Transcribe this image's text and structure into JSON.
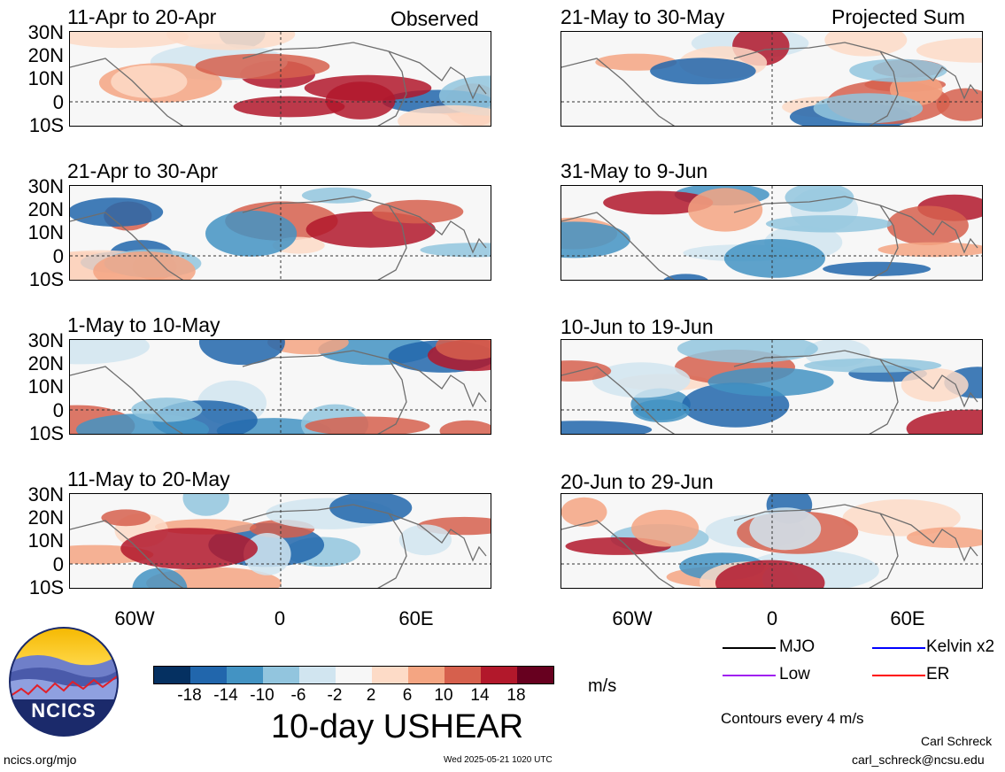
{
  "panels": {
    "left": [
      {
        "title": "11-Apr to 20-Apr",
        "tag": "Observed"
      },
      {
        "title": "21-Apr to 30-Apr",
        "tag": ""
      },
      {
        "title": "1-May to 10-May",
        "tag": ""
      },
      {
        "title": "11-May to 20-May",
        "tag": ""
      }
    ],
    "right": [
      {
        "title": "21-May to 30-May",
        "tag": "Projected Sum"
      },
      {
        "title": "31-May to 9-Jun",
        "tag": ""
      },
      {
        "title": "10-Jun to 19-Jun",
        "tag": ""
      },
      {
        "title": "20-Jun to 29-Jun",
        "tag": ""
      }
    ]
  },
  "axes": {
    "lat_labels": [
      "30N",
      "20N",
      "10N",
      "0",
      "10S"
    ],
    "lon_labels": [
      "60W",
      "0",
      "60E"
    ]
  },
  "colorbar": {
    "labels": [
      "-18",
      "-14",
      "-10",
      "-6",
      "-2",
      "2",
      "6",
      "10",
      "14",
      "18"
    ],
    "colors": [
      "#053061",
      "#2166ac",
      "#4393c3",
      "#92c5de",
      "#d1e5f0",
      "#f7f7f7",
      "#fddbc7",
      "#f4a582",
      "#d6604d",
      "#b2182b",
      "#67001f"
    ],
    "units": "m/s",
    "title": "10-day USHEAR"
  },
  "legend": {
    "items": [
      {
        "label": "MJO",
        "color": "#000000"
      },
      {
        "label": "Kelvin x2",
        "color": "#0000ff"
      },
      {
        "label": "Low",
        "color": "#a020f0"
      },
      {
        "label": "ER",
        "color": "#ff0000"
      }
    ],
    "contour_note": "Contours every 4 m/s"
  },
  "logo": {
    "text": "NCICS"
  },
  "footer": {
    "url": "ncics.org/mjo",
    "timestamp": "Wed 2025-05-21 1020 UTC",
    "author": "Carl Schreck",
    "email": "carl_schreck@ncsu.edu"
  }
}
